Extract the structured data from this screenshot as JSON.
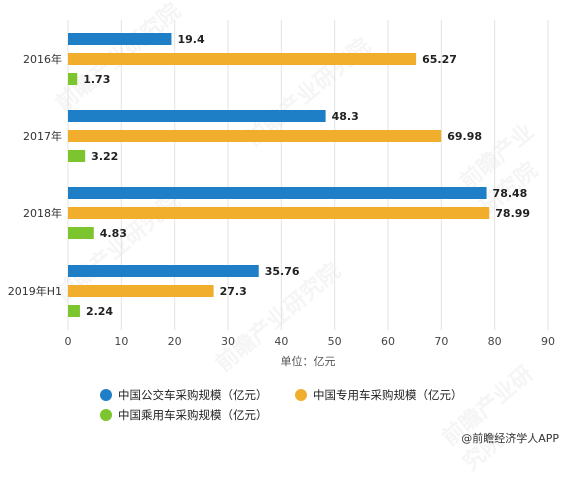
{
  "chart_data": {
    "type": "bar",
    "orientation": "horizontal",
    "categories": [
      "2016年",
      "2017年",
      "2018年",
      "2019年H1"
    ],
    "series": [
      {
        "name": "中国公交车采购规模（亿元）",
        "values": [
          19.4,
          48.3,
          78.48,
          35.76
        ],
        "color": "#1f7fc6",
        "labels": [
          "19.4",
          "48.3",
          "78.48",
          "35.76"
        ]
      },
      {
        "name": "中国专用车采购规模（亿元）",
        "values": [
          65.27,
          69.98,
          78.99,
          27.3
        ],
        "color": "#f0ae2c",
        "labels": [
          "65.27",
          "69.98",
          "78.99",
          "27.3"
        ]
      },
      {
        "name": "中国乘用车采购规模（亿元）",
        "values": [
          1.73,
          3.22,
          4.83,
          2.24
        ],
        "color": "#7dc52e",
        "labels": [
          "1.73",
          "3.22",
          "4.83",
          "2.24"
        ]
      }
    ],
    "xlabel": "单位：亿元",
    "ylabel": "",
    "xlim": [
      0,
      90
    ],
    "xticks": [
      "0",
      "10",
      "20",
      "30",
      "40",
      "50",
      "60",
      "70",
      "80",
      "90"
    ],
    "grid": true
  },
  "source": "@前瞻经济学人APP",
  "watermark": "前瞻产业研究院"
}
